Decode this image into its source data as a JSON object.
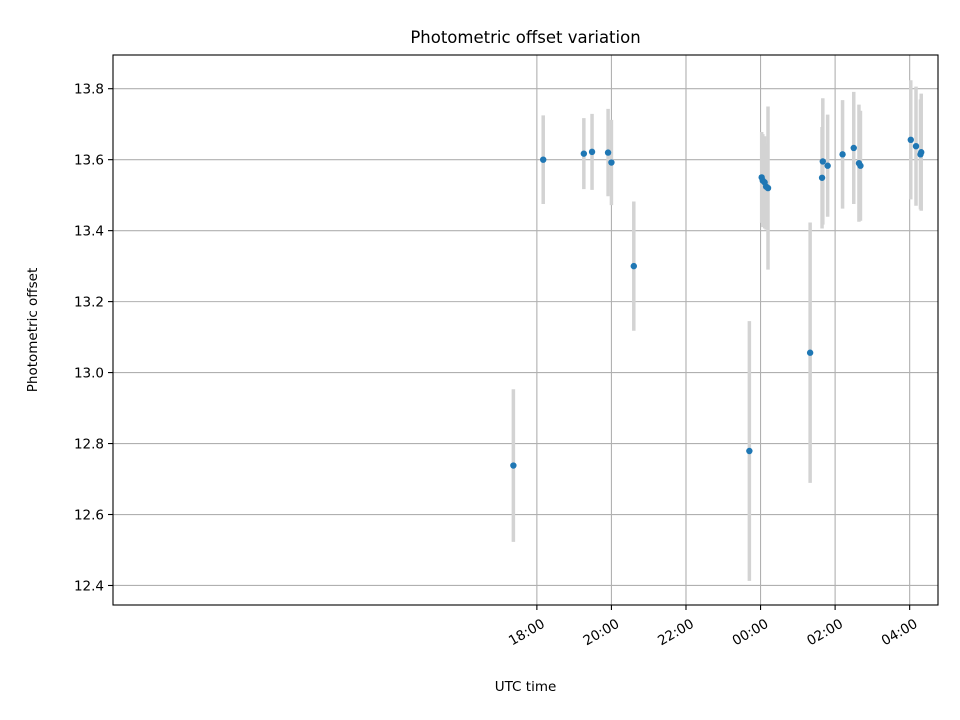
{
  "chart_data": {
    "type": "scatter",
    "title": "Photometric offset variation",
    "xlabel": "UTC time",
    "ylabel": "Photometric offset",
    "x_unit": "hours since 00:00 UTC (negative = previous day)",
    "xlim": [
      -17.37,
      4.76
    ],
    "ylim": [
      12.345,
      13.895
    ],
    "x_ticks": [
      {
        "value": -6,
        "label": "18:00"
      },
      {
        "value": -4,
        "label": "20:00"
      },
      {
        "value": -2,
        "label": "22:00"
      },
      {
        "value": 0,
        "label": "00:00"
      },
      {
        "value": 2,
        "label": "02:00"
      },
      {
        "value": 4,
        "label": "04:00"
      }
    ],
    "y_ticks": [
      {
        "value": 12.4,
        "label": "12.4"
      },
      {
        "value": 12.6,
        "label": "12.6"
      },
      {
        "value": 12.8,
        "label": "12.8"
      },
      {
        "value": 13.0,
        "label": "13.0"
      },
      {
        "value": 13.2,
        "label": "13.2"
      },
      {
        "value": 13.4,
        "label": "13.4"
      },
      {
        "value": 13.6,
        "label": "13.6"
      },
      {
        "value": 13.8,
        "label": "13.8"
      }
    ],
    "grid": true,
    "point_color": "#1f77b4",
    "errorbar_color": "#d3d3d3",
    "points": [
      {
        "x": -6.63,
        "y": 12.738,
        "err": 0.215
      },
      {
        "x": -5.83,
        "y": 13.6,
        "err": 0.125
      },
      {
        "x": -4.74,
        "y": 13.617,
        "err": 0.1
      },
      {
        "x": -4.52,
        "y": 13.622,
        "err": 0.107
      },
      {
        "x": -4.09,
        "y": 13.62,
        "err": 0.123
      },
      {
        "x": -4.0,
        "y": 13.592,
        "err": 0.12
      },
      {
        "x": -3.4,
        "y": 13.3,
        "err": 0.182
      },
      {
        "x": -0.3,
        "y": 12.779,
        "err": 0.366
      },
      {
        "x": 0.03,
        "y": 13.55,
        "err": 0.128
      },
      {
        "x": 0.06,
        "y": 13.541,
        "err": 0.131
      },
      {
        "x": 0.11,
        "y": 13.536,
        "err": 0.13
      },
      {
        "x": 0.15,
        "y": 13.524,
        "err": 0.121
      },
      {
        "x": 0.2,
        "y": 13.52,
        "err": 0.23
      },
      {
        "x": 1.33,
        "y": 13.056,
        "err": 0.367
      },
      {
        "x": 1.65,
        "y": 13.549,
        "err": 0.143
      },
      {
        "x": 1.67,
        "y": 13.595,
        "err": 0.178
      },
      {
        "x": 1.8,
        "y": 13.583,
        "err": 0.144
      },
      {
        "x": 2.2,
        "y": 13.615,
        "err": 0.153
      },
      {
        "x": 2.5,
        "y": 13.633,
        "err": 0.158
      },
      {
        "x": 2.64,
        "y": 13.59,
        "err": 0.165
      },
      {
        "x": 2.68,
        "y": 13.583,
        "err": 0.155
      },
      {
        "x": 4.03,
        "y": 13.656,
        "err": 0.168
      },
      {
        "x": 4.17,
        "y": 13.638,
        "err": 0.168
      },
      {
        "x": 4.29,
        "y": 13.615,
        "err": 0.155
      },
      {
        "x": 4.31,
        "y": 13.621,
        "err": 0.165
      }
    ]
  }
}
